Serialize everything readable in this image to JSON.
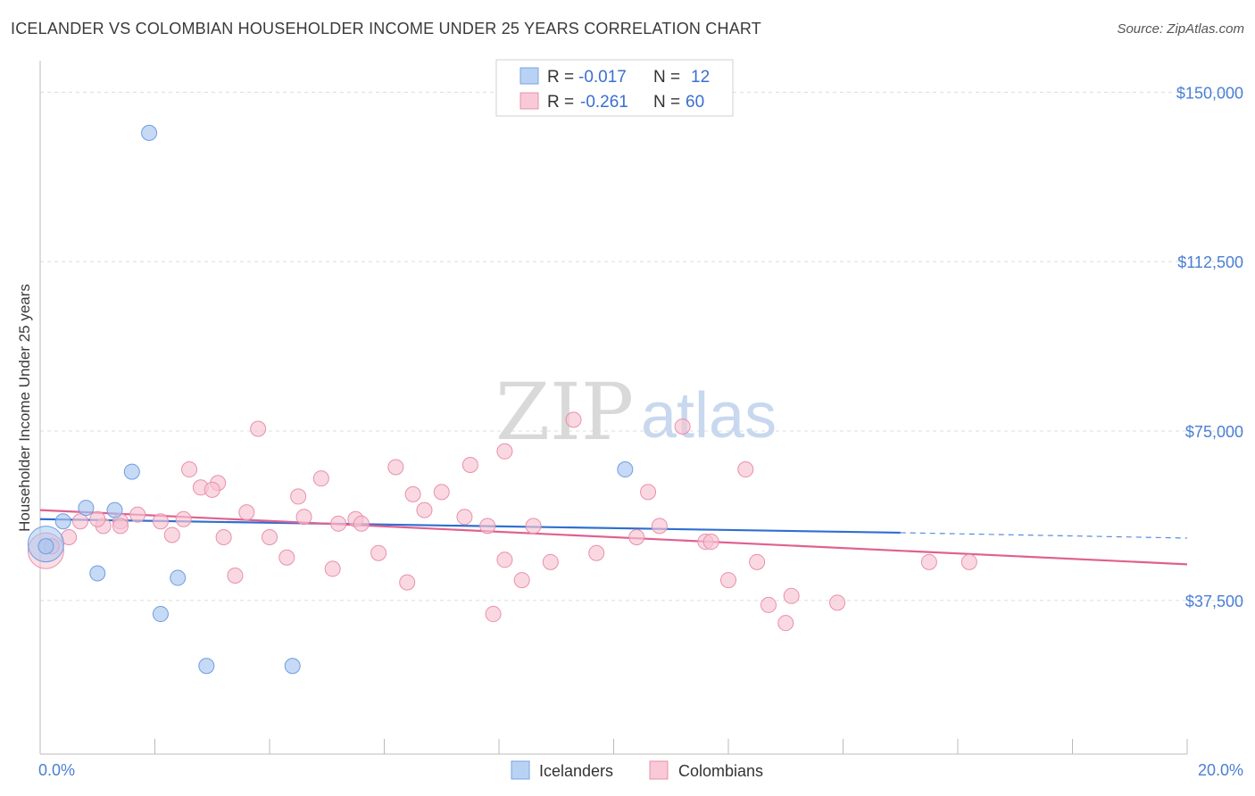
{
  "header": {
    "title": "ICELANDER VS COLOMBIAN HOUSEHOLDER INCOME UNDER 25 YEARS CORRELATION CHART",
    "source": "Source: ZipAtlas.com"
  },
  "watermark": {
    "zip": "ZIP",
    "atlas": "atlas"
  },
  "chart_data": {
    "type": "scatter",
    "ylabel": "Householder Income Under 25 years",
    "xlim": [
      0,
      20
    ],
    "ylim": [
      3500,
      155000
    ],
    "ytick_labels": [
      "$150,000",
      "$112,500",
      "$75,000",
      "$37,500"
    ],
    "ytick_values": [
      150000,
      112500,
      75000,
      37500
    ],
    "x_label_left": "0.0%",
    "x_label_right": "20.0%",
    "grid": true,
    "legend_position": "top-center",
    "stats": [
      {
        "r_label": "R =",
        "r_value": "-0.017",
        "n_label": "N =",
        "n_value": "12"
      },
      {
        "r_label": "R =",
        "r_value": "-0.261",
        "n_label": "N =",
        "n_value": "60"
      }
    ],
    "series": [
      {
        "name": "Icelanders",
        "color": "#a8c6f0",
        "stroke": "#6f9de0",
        "line_color": "#2f6fd0",
        "trend": {
          "x": [
            0,
            15
          ],
          "y": [
            55500,
            52500
          ],
          "dashed_to": [
            20,
            51300
          ]
        },
        "points": [
          [
            0.1,
            49500
          ],
          [
            0.4,
            55000
          ],
          [
            0.8,
            58000
          ],
          [
            1.3,
            57500
          ],
          [
            1.9,
            141000
          ],
          [
            1.6,
            66000
          ],
          [
            1.0,
            43500
          ],
          [
            2.4,
            42500
          ],
          [
            2.1,
            34500
          ],
          [
            2.9,
            23000
          ],
          [
            4.4,
            23000
          ],
          [
            10.2,
            66500
          ]
        ],
        "big_point": [
          0.1,
          50000
        ]
      },
      {
        "name": "Colombians",
        "color": "#f7c3d2",
        "stroke": "#e890aa",
        "line_color": "#e06090",
        "trend": {
          "x": [
            0,
            20
          ],
          "y": [
            57500,
            45500
          ]
        },
        "points": [
          [
            0.7,
            55000
          ],
          [
            1.1,
            54000
          ],
          [
            1.4,
            55000
          ],
          [
            1.7,
            56500
          ],
          [
            1.4,
            54000
          ],
          [
            2.1,
            55000
          ],
          [
            2.3,
            52000
          ],
          [
            2.5,
            55500
          ],
          [
            2.6,
            66500
          ],
          [
            2.8,
            62500
          ],
          [
            3.1,
            63500
          ],
          [
            3.2,
            51500
          ],
          [
            3.4,
            43000
          ],
          [
            3.6,
            57000
          ],
          [
            3.8,
            75500
          ],
          [
            4.0,
            51500
          ],
          [
            4.3,
            47000
          ],
          [
            4.5,
            60500
          ],
          [
            4.6,
            56000
          ],
          [
            4.9,
            64500
          ],
          [
            5.1,
            44500
          ],
          [
            5.2,
            54500
          ],
          [
            5.5,
            55500
          ],
          [
            5.6,
            54500
          ],
          [
            5.9,
            48000
          ],
          [
            6.2,
            67000
          ],
          [
            6.4,
            41500
          ],
          [
            6.5,
            61000
          ],
          [
            6.7,
            57500
          ],
          [
            7.0,
            61500
          ],
          [
            7.4,
            56000
          ],
          [
            7.5,
            67500
          ],
          [
            7.8,
            54000
          ],
          [
            7.9,
            34500
          ],
          [
            8.1,
            70500
          ],
          [
            8.1,
            46500
          ],
          [
            8.4,
            42000
          ],
          [
            8.9,
            46000
          ],
          [
            9.3,
            77500
          ],
          [
            9.7,
            48000
          ],
          [
            10.4,
            51500
          ],
          [
            10.6,
            61500
          ],
          [
            10.8,
            54000
          ],
          [
            11.2,
            76000
          ],
          [
            11.6,
            50500
          ],
          [
            11.7,
            50500
          ],
          [
            12.0,
            42000
          ],
          [
            12.3,
            66500
          ],
          [
            12.5,
            46000
          ],
          [
            12.7,
            36500
          ],
          [
            13.0,
            32500
          ],
          [
            13.1,
            38500
          ],
          [
            13.9,
            37000
          ],
          [
            15.5,
            46000
          ],
          [
            16.2,
            46000
          ],
          [
            0.5,
            51500
          ],
          [
            1.0,
            55500
          ],
          [
            0.2,
            49500
          ],
          [
            3.0,
            62000
          ],
          [
            8.6,
            54000
          ]
        ],
        "big_point": [
          0.1,
          48500
        ]
      }
    ]
  },
  "legend": {
    "items": [
      "Icelanders",
      "Colombians"
    ]
  }
}
